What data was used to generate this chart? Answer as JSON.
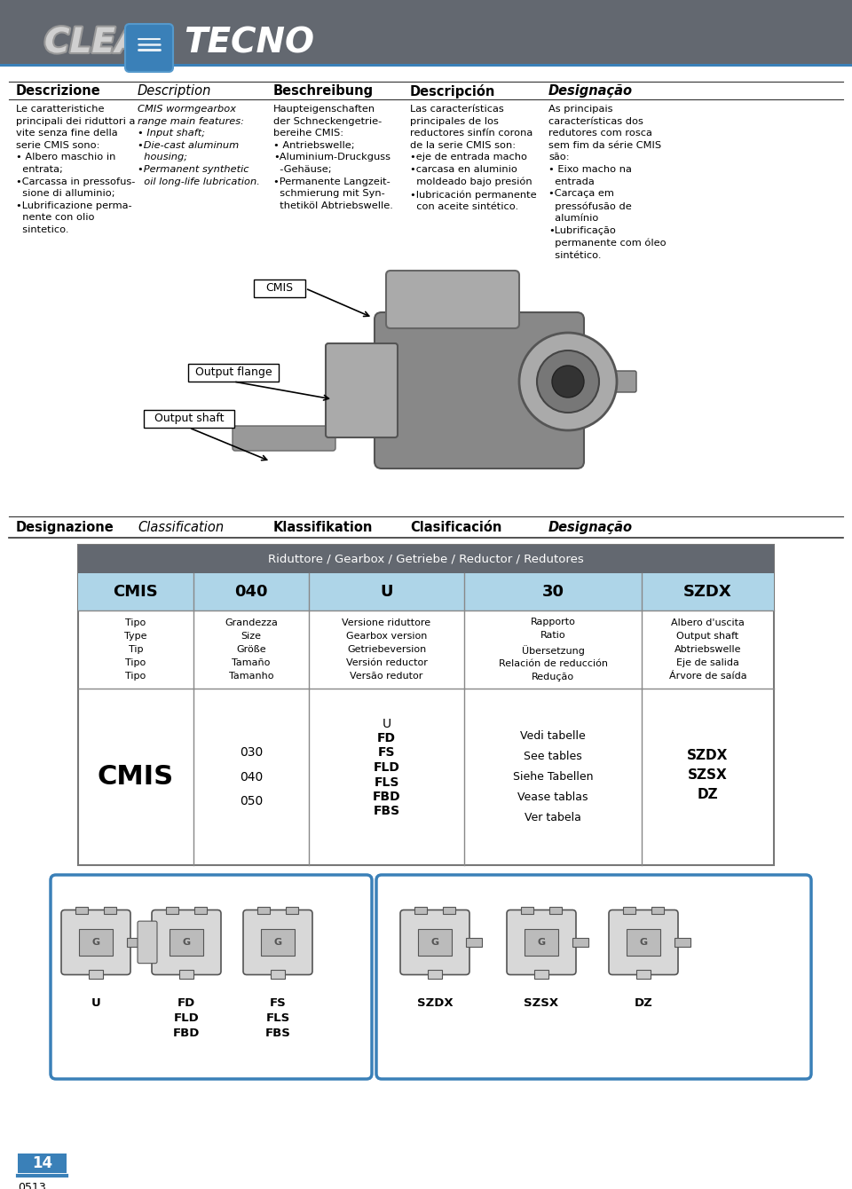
{
  "header_bg": "#636870",
  "header_blue_line": "#3a80b8",
  "page_bg": "#ffffff",
  "col1_header": "Descrizione",
  "col2_header": "Description",
  "col3_header": "Beschreibung",
  "col4_header": "Descripción",
  "col5_header": "Designação",
  "col1_body": "Le caratteristiche\nprincipali dei riduttori a\nvite senza fine della\nserie CMIS sono:\n• Albero maschio in\n  entrata;\n•Carcassa in pressofus-\n  sione di alluminio;\n•Lubrificazione perma-\n  nente con olio\n  sintetico.",
  "col2_body": "CMIS wormgearbox\nrange main features:\n• Input shaft;\n•Die-cast aluminum\n  housing;\n•Permanent synthetic\n  oil long-life lubrication.",
  "col3_body": "Haupteigenschaften\nder Schneckengetrie-\nbereihe CMIS:\n• Antriebswelle;\n•Aluminium-Druckguss\n  -Gehäuse;\n•Permanente Langzeit-\n  schmierung mit Syn-\n  thetiköl Abtriebswelle.",
  "col4_body": "Las características\nprincipales de los\nreductores sinfín corona\nde la serie CMIS son:\n•eje de entrada macho\n•carcasa en aluminio\n  moldeado bajo presión\n•lubricación permanente\n  con aceite sintético.",
  "col5_body": "As principais\ncaracterísticas dos\nredutores com rosca\nsem fim da série CMIS\nsão:\n• Eixo macho na\n  entrada\n•Carcaça em\n  pressófusão de\n  alumínio\n•Lubrificação\n  permanente com óleo\n  sintético.",
  "label_cmis": "CMIS",
  "label_output_flange": "Output flange",
  "label_output_shaft": "Output shaft",
  "section2_col1": "Designazione",
  "section2_col2": "Classification",
  "section2_col3": "Klassifikation",
  "section2_col4": "Clasificación",
  "section2_col5": "Designação",
  "table_header": "Riduttore / Gearbox / Getriebe / Reductor / Redutores",
  "table_row1": [
    "CMIS",
    "040",
    "U",
    "30",
    "SZDX"
  ],
  "table_sub_col1": [
    "Tipo",
    "Type",
    "Tip",
    "Tipo",
    "Tipo"
  ],
  "table_sub_col2": [
    "Grandezza",
    "Size",
    "Größe",
    "Tamaño",
    "Tamanho"
  ],
  "table_sub_col3": [
    "Versione riduttore",
    "Gearbox version",
    "Getriebeversion",
    "Versión reductor",
    "Versão redutor"
  ],
  "table_sub_col4": [
    "Rapporto",
    "Ratio",
    "Übersetzung",
    "Relación de reducción",
    "Redução"
  ],
  "table_sub_col5": [
    "Albero d'uscita",
    "Output shaft",
    "Abtriebswelle",
    "Eje de salida",
    "Árvore de saída"
  ],
  "table_data_col1": "CMIS",
  "table_data_col2": [
    "030",
    "040",
    "050"
  ],
  "table_data_col3": [
    "U",
    "FD",
    "FS",
    "FLD",
    "FLS",
    "FBD",
    "FBS"
  ],
  "table_data_col4": [
    "Vedi tabelle",
    "See tables",
    "Siehe Tabellen",
    "Vease tablas",
    "Ver tabela"
  ],
  "table_data_col5": [
    "SZDX",
    "SZSX",
    "DZ"
  ],
  "bottom_left_labels": [
    "U",
    "FD\nFLD\nFBD",
    "FS\nFLS\nFBS"
  ],
  "bottom_right_labels": [
    "SZDX",
    "SZSX",
    "DZ"
  ],
  "page_number": "14",
  "page_code": "0513",
  "table_header_bg": "#636870",
  "table_row1_bg": "#aed5e8",
  "table_grid_color": "#aaaaaa",
  "bottom_box_border": "#3a80b8"
}
